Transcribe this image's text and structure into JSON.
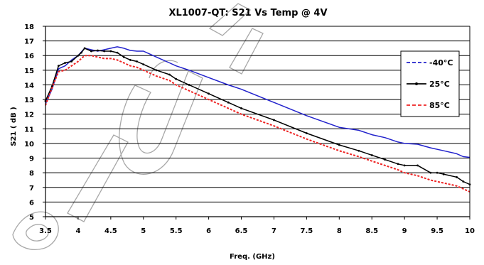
{
  "chart_data": {
    "type": "line",
    "title": "XL1007-QT: S21 Vs Temp @ 4V",
    "xlabel": "Freq. (GHz)",
    "ylabel": "S21 ( dB )",
    "xlim": [
      3.5,
      10
    ],
    "ylim": [
      5,
      18
    ],
    "xticks": [
      "3.5",
      "4",
      "4.5",
      "5",
      "5.5",
      "6",
      "6.5",
      "7",
      "7.5",
      "8",
      "8.5",
      "9",
      "9.5",
      "10"
    ],
    "yticks": [
      "5",
      "6",
      "7",
      "8",
      "9",
      "10",
      "11",
      "12",
      "13",
      "14",
      "15",
      "16",
      "17",
      "18"
    ],
    "grid": "horizontal",
    "legend_position": "right",
    "series": [
      {
        "name": "-40°C",
        "color": "#2222cc",
        "style": "dashed-legend",
        "x": [
          3.5,
          3.6,
          3.7,
          3.75,
          3.8,
          3.9,
          4.0,
          4.1,
          4.2,
          4.3,
          4.4,
          4.5,
          4.6,
          4.7,
          4.8,
          4.9,
          5.0,
          5.1,
          5.2,
          5.3,
          5.4,
          5.5,
          5.7,
          6.0,
          6.3,
          6.5,
          7.0,
          7.5,
          8.0,
          8.3,
          8.5,
          8.7,
          8.9,
          9.0,
          9.2,
          9.4,
          9.6,
          9.8,
          9.9,
          10.0
        ],
        "y": [
          12.7,
          13.7,
          15.1,
          15.2,
          15.3,
          15.7,
          16.0,
          16.5,
          16.4,
          16.3,
          16.4,
          16.5,
          16.6,
          16.5,
          16.35,
          16.3,
          16.3,
          16.1,
          15.9,
          15.7,
          15.5,
          15.3,
          15.0,
          14.5,
          14.0,
          13.7,
          12.8,
          11.9,
          11.1,
          10.9,
          10.6,
          10.4,
          10.1,
          10.0,
          9.95,
          9.7,
          9.5,
          9.3,
          9.1,
          9.05
        ]
      },
      {
        "name": "25°C",
        "color": "#000000",
        "style": "solid-marker",
        "x": [
          3.5,
          3.6,
          3.7,
          3.8,
          3.9,
          4.0,
          4.05,
          4.1,
          4.2,
          4.3,
          4.4,
          4.5,
          4.6,
          4.7,
          4.8,
          4.9,
          5.0,
          5.2,
          5.4,
          5.5,
          5.7,
          6.0,
          6.3,
          6.5,
          7.0,
          7.5,
          8.0,
          8.3,
          8.5,
          8.7,
          8.9,
          9.0,
          9.2,
          9.4,
          9.5,
          9.6,
          9.8,
          9.9,
          10.0
        ],
        "y": [
          12.9,
          13.9,
          15.3,
          15.5,
          15.6,
          16.0,
          16.2,
          16.5,
          16.3,
          16.35,
          16.3,
          16.3,
          16.2,
          15.9,
          15.7,
          15.6,
          15.4,
          15.0,
          14.7,
          14.4,
          14.0,
          13.4,
          12.8,
          12.4,
          11.6,
          10.7,
          9.9,
          9.5,
          9.2,
          8.9,
          8.6,
          8.5,
          8.5,
          8.0,
          8.0,
          7.9,
          7.7,
          7.4,
          7.2
        ]
      },
      {
        "name": "85°C",
        "color": "#ee2222",
        "style": "dashed",
        "x": [
          3.5,
          3.6,
          3.7,
          3.8,
          3.9,
          4.0,
          4.1,
          4.2,
          4.3,
          4.4,
          4.5,
          4.6,
          4.7,
          4.8,
          4.9,
          5.0,
          5.2,
          5.4,
          5.5,
          5.7,
          6.0,
          6.3,
          6.5,
          7.0,
          7.5,
          8.0,
          8.3,
          8.5,
          8.7,
          8.9,
          9.0,
          9.2,
          9.4,
          9.6,
          9.8,
          9.9,
          10.0
        ],
        "y": [
          12.6,
          13.8,
          14.9,
          15.0,
          15.3,
          15.6,
          16.0,
          16.0,
          15.9,
          15.8,
          15.8,
          15.7,
          15.5,
          15.3,
          15.2,
          15.0,
          14.6,
          14.3,
          14.0,
          13.6,
          13.0,
          12.4,
          12.0,
          11.2,
          10.3,
          9.5,
          9.1,
          8.8,
          8.5,
          8.2,
          8.0,
          7.8,
          7.5,
          7.3,
          7.1,
          6.9,
          6.7
        ]
      }
    ]
  },
  "watermark": {
    "color": "#a8a8a8",
    "text": "Obsolete"
  }
}
